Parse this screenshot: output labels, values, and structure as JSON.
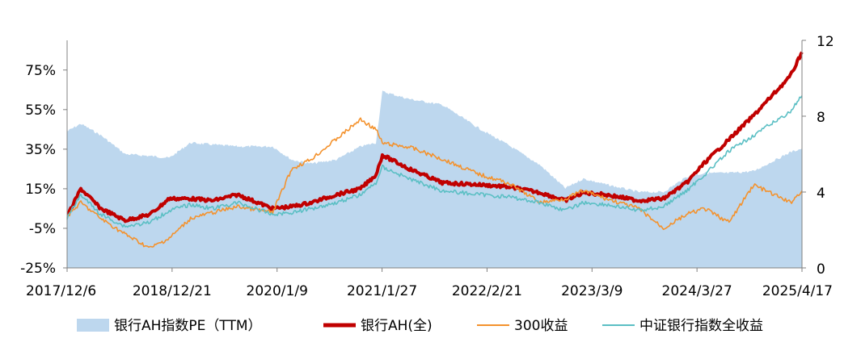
{
  "chart_data": {
    "type": "line",
    "title": "",
    "xlabel": "",
    "ylabel": "",
    "x_tick_labels": [
      "2017/12/6",
      "2018/12/21",
      "2020/1/9",
      "2021/1/27",
      "2022/2/21",
      "2023/3/9",
      "2024/3/27",
      "2025/4/17"
    ],
    "y_left": {
      "ylim": [
        -25,
        90
      ],
      "ticks": [
        -25,
        -5,
        15,
        35,
        55,
        75
      ],
      "tick_labels": [
        "-25%",
        "-5%",
        "15%",
        "35%",
        "55%",
        "75%"
      ]
    },
    "y_right": {
      "ylim": [
        0,
        12
      ],
      "ticks": [
        0,
        4,
        8,
        12
      ],
      "tick_labels": [
        "0",
        "4",
        "8",
        "12"
      ]
    },
    "legend_position": "bottom",
    "series": [
      {
        "name": "银行AH指数PE（TTM）",
        "type": "area",
        "axis": "right",
        "color": "#bdd7ee",
        "points": [
          [
            "2017/12/6",
            7.2
          ],
          [
            "2018/01/26",
            7.6
          ],
          [
            "2018/04/10",
            7.0
          ],
          [
            "2018/07/10",
            6.0
          ],
          [
            "2018/10/10",
            5.9
          ],
          [
            "2018/12/21",
            5.8
          ],
          [
            "2019/03/10",
            6.6
          ],
          [
            "2019/06/01",
            6.5
          ],
          [
            "2019/09/01",
            6.4
          ],
          [
            "2020/01/09",
            6.4
          ],
          [
            "2020/03/20",
            5.7
          ],
          [
            "2020/06/01",
            5.5
          ],
          [
            "2020/09/01",
            5.7
          ],
          [
            "2020/12/01",
            6.4
          ],
          [
            "2021/01/27",
            6.6
          ],
          [
            "2021/02/20",
            9.3
          ],
          [
            "2021/06/01",
            8.9
          ],
          [
            "2021/10/01",
            8.6
          ],
          [
            "2022/02/21",
            7.3
          ],
          [
            "2022/06/01",
            6.5
          ],
          [
            "2022/10/01",
            5.4
          ],
          [
            "2023/01/01",
            4.2
          ],
          [
            "2023/03/09",
            4.7
          ],
          [
            "2023/06/01",
            4.4
          ],
          [
            "2023/10/01",
            4.0
          ],
          [
            "2024/01/01",
            4.0
          ],
          [
            "2024/03/27",
            4.8
          ],
          [
            "2024/06/01",
            5.0
          ],
          [
            "2024/09/01",
            5.0
          ],
          [
            "2024/12/01",
            5.1
          ],
          [
            "2025/04/17",
            6.1
          ],
          [
            "2025/05/30",
            6.3
          ]
        ]
      },
      {
        "name": "银行AH(全)",
        "type": "line",
        "axis": "left",
        "color": "#c00000",
        "width": 4,
        "points": [
          [
            "2017/12/6",
            1
          ],
          [
            "2018/01/26",
            15
          ],
          [
            "2018/04/10",
            5
          ],
          [
            "2018/07/10",
            -1
          ],
          [
            "2018/10/10",
            2
          ],
          [
            "2018/12/21",
            10
          ],
          [
            "2019/03/10",
            10
          ],
          [
            "2019/06/01",
            9
          ],
          [
            "2019/09/01",
            12
          ],
          [
            "2020/01/09",
            5
          ],
          [
            "2020/03/20",
            6
          ],
          [
            "2020/06/01",
            8
          ],
          [
            "2020/09/01",
            12
          ],
          [
            "2020/12/01",
            15
          ],
          [
            "2021/01/27",
            22
          ],
          [
            "2021/02/20",
            32
          ],
          [
            "2021/06/01",
            25
          ],
          [
            "2021/10/01",
            18
          ],
          [
            "2022/02/21",
            17
          ],
          [
            "2022/06/01",
            16
          ],
          [
            "2022/10/01",
            13
          ],
          [
            "2023/01/01",
            9
          ],
          [
            "2023/03/09",
            13
          ],
          [
            "2023/06/01",
            12
          ],
          [
            "2023/10/01",
            9
          ],
          [
            "2024/01/01",
            10
          ],
          [
            "2024/03/27",
            18
          ],
          [
            "2024/06/01",
            28
          ],
          [
            "2024/09/01",
            40
          ],
          [
            "2024/12/01",
            52
          ],
          [
            "2025/04/17",
            72
          ],
          [
            "2025/05/30",
            84
          ]
        ]
      },
      {
        "name": "300收益",
        "type": "line",
        "axis": "left",
        "color": "#f4922d",
        "width": 1.6,
        "points": [
          [
            "2017/12/6",
            1
          ],
          [
            "2018/01/26",
            8
          ],
          [
            "2018/04/10",
            0
          ],
          [
            "2018/07/10",
            -8
          ],
          [
            "2018/10/10",
            -15
          ],
          [
            "2018/12/21",
            -10
          ],
          [
            "2019/03/10",
            0
          ],
          [
            "2019/06/01",
            3
          ],
          [
            "2019/09/01",
            6
          ],
          [
            "2020/01/09",
            3
          ],
          [
            "2020/03/20",
            25
          ],
          [
            "2020/06/01",
            30
          ],
          [
            "2020/09/01",
            40
          ],
          [
            "2020/12/01",
            50
          ],
          [
            "2021/01/27",
            45
          ],
          [
            "2021/02/20",
            38
          ],
          [
            "2021/06/01",
            36
          ],
          [
            "2021/10/01",
            30
          ],
          [
            "2022/02/21",
            22
          ],
          [
            "2022/06/01",
            18
          ],
          [
            "2022/10/01",
            8
          ],
          [
            "2023/01/01",
            10
          ],
          [
            "2023/03/09",
            14
          ],
          [
            "2023/06/01",
            10
          ],
          [
            "2023/10/01",
            5
          ],
          [
            "2024/01/01",
            -5
          ],
          [
            "2024/03/27",
            2
          ],
          [
            "2024/06/01",
            5
          ],
          [
            "2024/09/01",
            -2
          ],
          [
            "2024/12/01",
            17
          ],
          [
            "2025/04/17",
            8
          ],
          [
            "2025/05/30",
            14
          ]
        ]
      },
      {
        "name": "中证银行指数全收益",
        "type": "line",
        "axis": "left",
        "color": "#5bbfc4",
        "width": 1.6,
        "points": [
          [
            "2017/12/6",
            0
          ],
          [
            "2018/01/26",
            12
          ],
          [
            "2018/04/10",
            2
          ],
          [
            "2018/07/10",
            -4
          ],
          [
            "2018/10/10",
            -2
          ],
          [
            "2018/12/21",
            4
          ],
          [
            "2019/03/10",
            7
          ],
          [
            "2019/06/01",
            5
          ],
          [
            "2019/09/01",
            8
          ],
          [
            "2020/01/09",
            2
          ],
          [
            "2020/03/20",
            3
          ],
          [
            "2020/06/01",
            5
          ],
          [
            "2020/09/01",
            8
          ],
          [
            "2020/12/01",
            12
          ],
          [
            "2021/01/27",
            18
          ],
          [
            "2021/02/20",
            26
          ],
          [
            "2021/06/01",
            20
          ],
          [
            "2021/10/01",
            14
          ],
          [
            "2022/02/21",
            12
          ],
          [
            "2022/06/01",
            11
          ],
          [
            "2022/10/01",
            8
          ],
          [
            "2023/01/01",
            4
          ],
          [
            "2023/03/09",
            8
          ],
          [
            "2023/06/01",
            7
          ],
          [
            "2023/10/01",
            4
          ],
          [
            "2024/01/01",
            6
          ],
          [
            "2024/03/27",
            14
          ],
          [
            "2024/06/01",
            22
          ],
          [
            "2024/09/01",
            34
          ],
          [
            "2024/12/01",
            42
          ],
          [
            "2025/04/17",
            54
          ],
          [
            "2025/05/30",
            62
          ]
        ]
      }
    ]
  }
}
